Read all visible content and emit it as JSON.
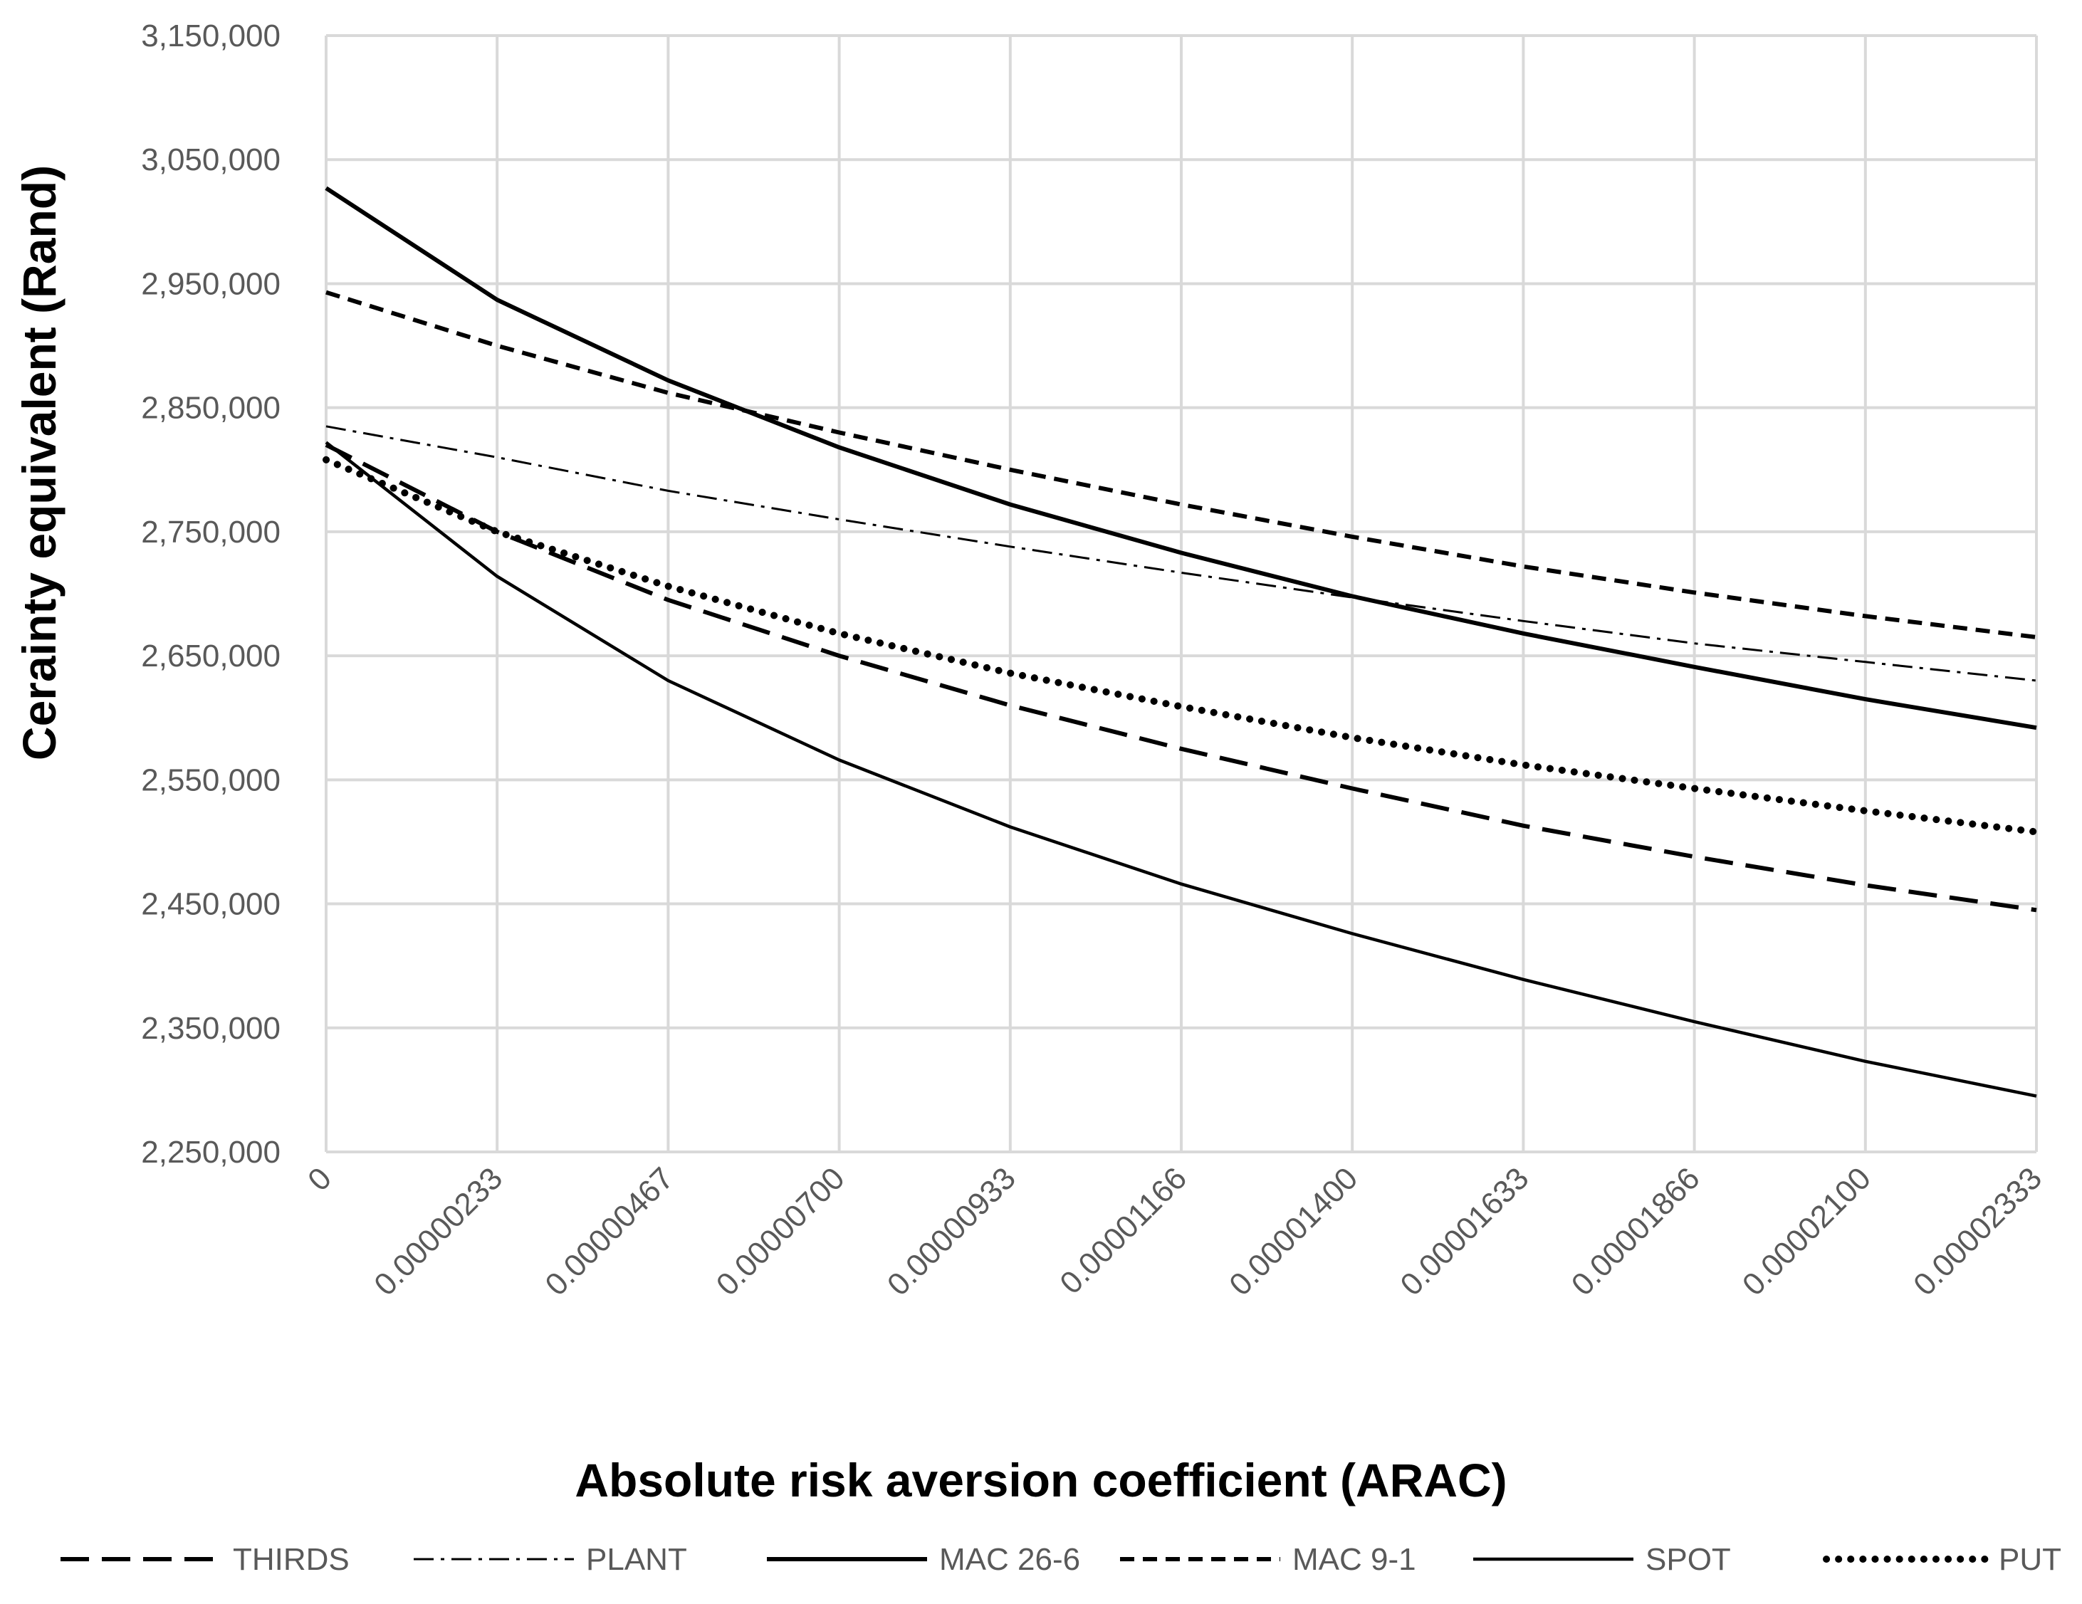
{
  "chart_data": {
    "type": "line",
    "title": "",
    "xlabel": "Absolute risk aversion coefficient (ARAC)",
    "ylabel": "Cerainty equivalent (Rand)",
    "x": [
      "0",
      "0.00000233",
      "0.00000467",
      "0.00000700",
      "0.00000933",
      "0.00001166",
      "0.00001400",
      "0.00001633",
      "0.00001866",
      "0.00002100",
      "0.00002333"
    ],
    "ylim": [
      2250000,
      3150000
    ],
    "yticks": [
      2250000,
      2350000,
      2450000,
      2550000,
      2650000,
      2750000,
      2850000,
      2950000,
      3050000,
      3150000
    ],
    "ytick_labels": [
      "2,250,000",
      "2,350,000",
      "2,450,000",
      "2,550,000",
      "2,650,000",
      "2,750,000",
      "2,850,000",
      "2,950,000",
      "3,050,000",
      "3,150,000"
    ],
    "grid": true,
    "legend_position": "bottom",
    "series": [
      {
        "name": "THIRDS",
        "style": "long-dash",
        "color": "#000000",
        "values": [
          2820000,
          2750000,
          2695000,
          2650000,
          2610000,
          2575000,
          2543000,
          2513000,
          2488000,
          2465000,
          2445000
        ]
      },
      {
        "name": "PLANT",
        "style": "dash-dot",
        "color": "#000000",
        "values": [
          2835000,
          2810000,
          2783000,
          2760000,
          2738000,
          2717000,
          2697000,
          2678000,
          2660000,
          2645000,
          2630000
        ]
      },
      {
        "name": "MAC 26-6",
        "style": "solid-thick",
        "color": "#000000",
        "values": [
          3027000,
          2937000,
          2872000,
          2818000,
          2772000,
          2733000,
          2698000,
          2668000,
          2641000,
          2615000,
          2592000
        ]
      },
      {
        "name": "MAC 9-1",
        "style": "short-dash",
        "color": "#000000",
        "values": [
          2943000,
          2900000,
          2862000,
          2830000,
          2800000,
          2772000,
          2746000,
          2722000,
          2701000,
          2682000,
          2665000
        ]
      },
      {
        "name": "SPOT",
        "style": "solid-thin",
        "color": "#000000",
        "values": [
          2822000,
          2714000,
          2630000,
          2566000,
          2512000,
          2466000,
          2426000,
          2389000,
          2355000,
          2323000,
          2295000
        ]
      },
      {
        "name": "PUT",
        "style": "dotted",
        "color": "#000000",
        "values": [
          2808000,
          2750000,
          2706000,
          2668000,
          2636000,
          2609000,
          2584000,
          2562000,
          2543000,
          2525000,
          2508000
        ]
      }
    ]
  }
}
